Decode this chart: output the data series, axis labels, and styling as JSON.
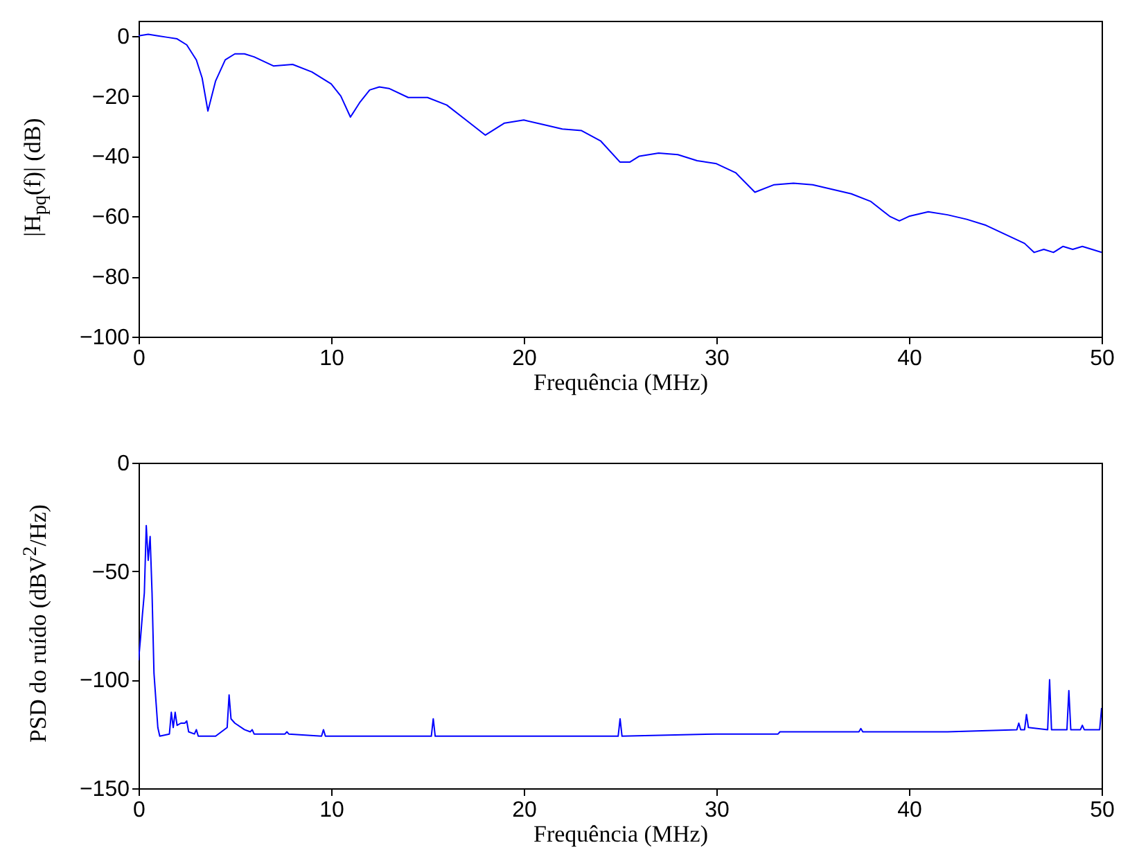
{
  "chart_data": [
    {
      "type": "line",
      "xlabel": "Frequência (MHz)",
      "ylabel": "|H$_{pq}$(f)| (dB)",
      "xlim": [
        0,
        50
      ],
      "ylim": [
        -100,
        5
      ],
      "xticks": [
        0,
        10,
        20,
        30,
        40,
        50
      ],
      "yticks": [
        -100,
        -80,
        -60,
        -40,
        -20,
        0
      ],
      "grid": false,
      "series": [
        {
          "color": "#0000ff",
          "x": [
            0,
            0.5,
            1,
            1.5,
            2,
            2.5,
            3,
            3.3,
            3.6,
            4,
            4.5,
            5,
            5.5,
            6,
            7,
            8,
            9,
            10,
            10.5,
            11,
            11.5,
            12,
            12.5,
            13,
            14,
            15,
            16,
            17,
            18,
            19,
            20,
            21,
            22,
            23,
            24,
            25,
            25.5,
            26,
            27,
            28,
            29,
            30,
            31,
            32,
            33,
            34,
            35,
            36,
            37,
            38,
            39,
            39.5,
            40,
            41,
            42,
            43,
            44,
            45,
            46,
            46.5,
            47,
            47.5,
            48,
            48.5,
            49,
            49.5,
            50
          ],
          "values": [
            0,
            0.5,
            0,
            -0.5,
            -1,
            -3,
            -8,
            -14,
            -25,
            -15,
            -8,
            -6,
            -6,
            -7,
            -10,
            -9.5,
            -12,
            -16,
            -20,
            -27,
            -22,
            -18,
            -17,
            -17.5,
            -20.5,
            -20.5,
            -23,
            -28,
            -33,
            -29,
            -28,
            -29.5,
            -31,
            -31.5,
            -35,
            -42,
            -42,
            -40,
            -39,
            -39.5,
            -41.5,
            -42.5,
            -45.5,
            -52,
            -49.5,
            -49,
            -49.5,
            -51,
            -52.5,
            -55,
            -60,
            -61.5,
            -60,
            -58.5,
            -59.5,
            -61,
            -63,
            -66,
            -69,
            -72,
            -71,
            -72,
            -70,
            -71,
            -70,
            -71,
            -72
          ]
        }
      ]
    },
    {
      "type": "line",
      "xlabel": "Frequência (MHz)",
      "ylabel": "PSD do ruído (dBV$^{2}$/Hz)",
      "xlim": [
        0,
        50
      ],
      "ylim": [
        -150,
        0
      ],
      "xticks": [
        0,
        10,
        20,
        30,
        40,
        50
      ],
      "yticks": [
        -150,
        -100,
        -50,
        0
      ],
      "grid": false,
      "series": [
        {
          "color": "#0000ff",
          "x": [
            0,
            0.1,
            0.2,
            0.3,
            0.4,
            0.5,
            0.6,
            0.7,
            0.8,
            1.0,
            1.1,
            1.6,
            1.7,
            1.8,
            1.9,
            2.0,
            2.2,
            2.4,
            2.5,
            2.6,
            2.9,
            3.0,
            3.1,
            4.0,
            4.6,
            4.7,
            4.8,
            5.0,
            5.5,
            5.8,
            5.9,
            6.0,
            7.6,
            7.7,
            7.8,
            9.5,
            9.6,
            9.7,
            12,
            15.2,
            15.3,
            15.4,
            20,
            24.9,
            25,
            25.1,
            30,
            33.2,
            33.3,
            33.4,
            37.4,
            37.5,
            37.6,
            42,
            45.6,
            45.7,
            45.8,
            46.0,
            46.1,
            46.2,
            47.2,
            47.3,
            47.4,
            48.2,
            48.3,
            48.4,
            48.9,
            49.0,
            49.1,
            49.9,
            50
          ],
          "values": [
            -91,
            -81,
            -70,
            -60,
            -29,
            -45,
            -34,
            -60,
            -97,
            -122,
            -126,
            -125,
            -115,
            -122,
            -115,
            -121,
            -120,
            -120,
            -119,
            -124,
            -125,
            -123,
            -126,
            -126,
            -122,
            -107,
            -118,
            -120,
            -123,
            -124,
            -123,
            -125,
            -125,
            -124,
            -125,
            -126,
            -123,
            -126,
            -126,
            -126,
            -118,
            -126,
            -126,
            -126,
            -118,
            -126,
            -125,
            -125,
            -124,
            -124,
            -124,
            -122.5,
            -124,
            -124,
            -123,
            -120,
            -123,
            -123,
            -116,
            -122,
            -123,
            -100,
            -123,
            -123,
            -105,
            -123,
            -123,
            -121,
            -123,
            -123,
            -113
          ]
        }
      ]
    }
  ]
}
